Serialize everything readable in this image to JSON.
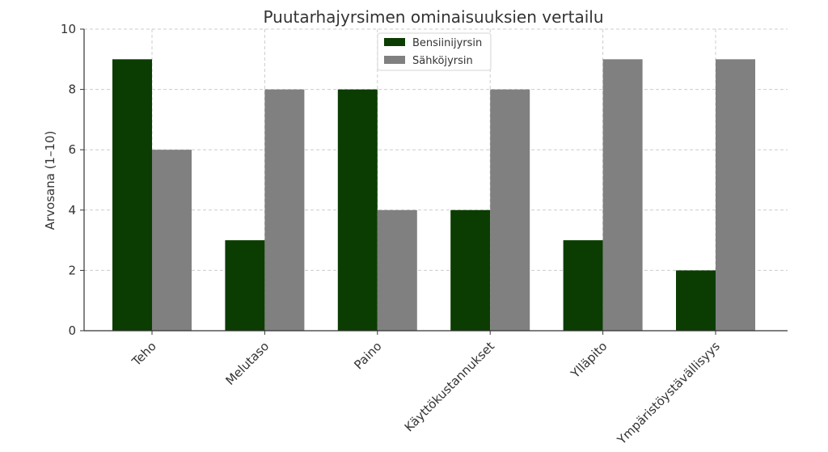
{
  "chart_data": {
    "type": "bar",
    "title": "Puutarhajyrsimen ominaisuuksien vertailu",
    "xlabel": "",
    "ylabel": "Arvosana (1–10)",
    "categories": [
      "Teho",
      "Melutaso",
      "Paino",
      "Käyttökustannukset",
      "Ylläpito",
      "Ympäristöystävällisyys"
    ],
    "series": [
      {
        "name": "Bensiinijyrsin",
        "values": [
          9,
          3,
          8,
          4,
          3,
          2
        ],
        "color": "#0b3d02"
      },
      {
        "name": "Sähköjyrsin",
        "values": [
          6,
          8,
          4,
          8,
          9,
          9
        ],
        "color": "#808080"
      }
    ],
    "ylim": [
      0,
      10
    ],
    "yticks": [
      "0",
      "2",
      "4",
      "6",
      "8",
      "10"
    ],
    "grid": true,
    "legend_position": "top-center"
  }
}
